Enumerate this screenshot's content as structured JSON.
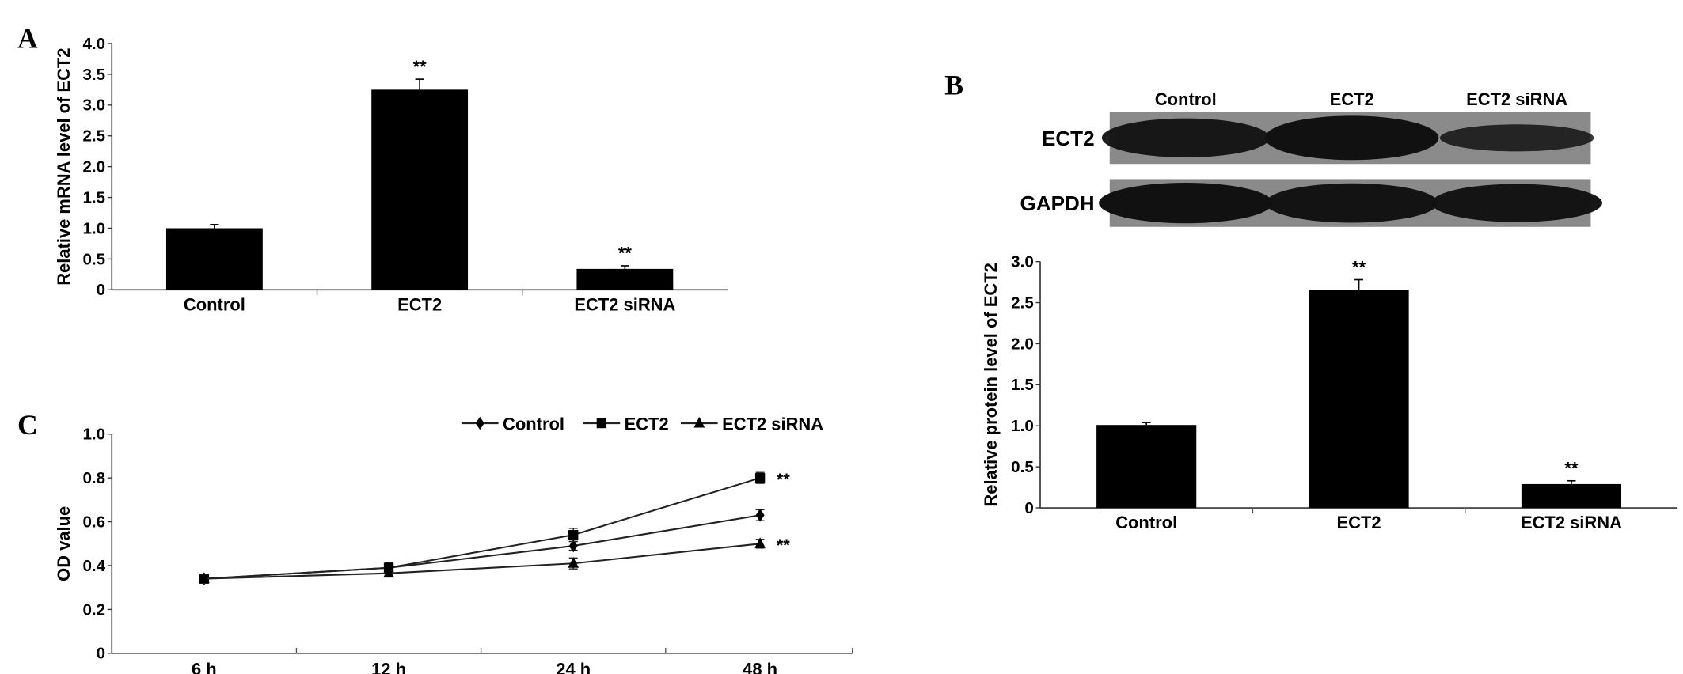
{
  "chart_data": [
    {
      "id": "A",
      "panel_label": "A",
      "type": "bar",
      "title": "",
      "xlabel": "",
      "ylabel": "Relative mRNA level of ECT2",
      "categories": [
        "Control",
        "ECT2",
        "ECT2 siRNA"
      ],
      "values": [
        1.0,
        3.25,
        0.34
      ],
      "errors": [
        0.06,
        0.17,
        0.05
      ],
      "annotations": [
        "",
        "**",
        "**"
      ],
      "ylim": [
        0,
        4.0
      ],
      "yticks": [
        0,
        0.5,
        1.0,
        1.5,
        2.0,
        2.5,
        3.0,
        3.5,
        4.0
      ],
      "ytick_labels": [
        "0",
        "0.5",
        "1.0",
        "1.5",
        "2.0",
        "2.5",
        "3.0",
        "3.5",
        "4.0"
      ],
      "grid": false
    },
    {
      "id": "B",
      "panel_label": "B",
      "type": "bar",
      "title": "",
      "xlabel": "",
      "ylabel": "Relative protein level of ECT2",
      "categories": [
        "Control",
        "ECT2",
        "ECT2 siRNA"
      ],
      "values": [
        1.01,
        2.65,
        0.29
      ],
      "errors": [
        0.03,
        0.13,
        0.04
      ],
      "annotations": [
        "",
        "**",
        "**"
      ],
      "ylim": [
        0,
        3.0
      ],
      "yticks": [
        0,
        0.5,
        1.0,
        1.5,
        2.0,
        2.5,
        3.0
      ],
      "ytick_labels": [
        "0",
        "0.5",
        "1.0",
        "1.5",
        "2.0",
        "2.5",
        "3.0"
      ],
      "grid": false,
      "blot": {
        "lanes": [
          "Control",
          "ECT2",
          "ECT2 siRNA"
        ],
        "rows": [
          {
            "label": "ECT2",
            "intensity": [
              0.8,
              1.0,
              0.35
            ]
          },
          {
            "label": "GAPDH",
            "intensity": [
              1.0,
              0.95,
              0.9
            ]
          }
        ]
      }
    },
    {
      "id": "C",
      "panel_label": "C",
      "type": "line",
      "title": "",
      "xlabel": "",
      "ylabel": "OD value",
      "x": [
        "6 h",
        "12 h",
        "24 h",
        "48 h"
      ],
      "series": [
        {
          "name": "Control",
          "marker": "diamond",
          "values": [
            0.34,
            0.39,
            0.49,
            0.63
          ],
          "errors": [
            0.02,
            0.02,
            0.02,
            0.025
          ],
          "annotation": ""
        },
        {
          "name": "ECT2",
          "marker": "square",
          "values": [
            0.34,
            0.39,
            0.54,
            0.8
          ],
          "errors": [
            0.02,
            0.025,
            0.03,
            0.025
          ],
          "annotation": "**"
        },
        {
          "name": "ECT2 siRNA",
          "marker": "triangle",
          "values": [
            0.34,
            0.365,
            0.41,
            0.5
          ],
          "errors": [
            0.02,
            0.015,
            0.025,
            0.02
          ],
          "annotation": "**"
        }
      ],
      "ylim": [
        0,
        1.0
      ],
      "yticks": [
        0,
        0.2,
        0.4,
        0.6,
        0.8,
        1.0
      ],
      "ytick_labels": [
        "0",
        "0.2",
        "0.4",
        "0.6",
        "0.8",
        "1.0"
      ],
      "legend_position": "top-right",
      "grid": false
    }
  ]
}
